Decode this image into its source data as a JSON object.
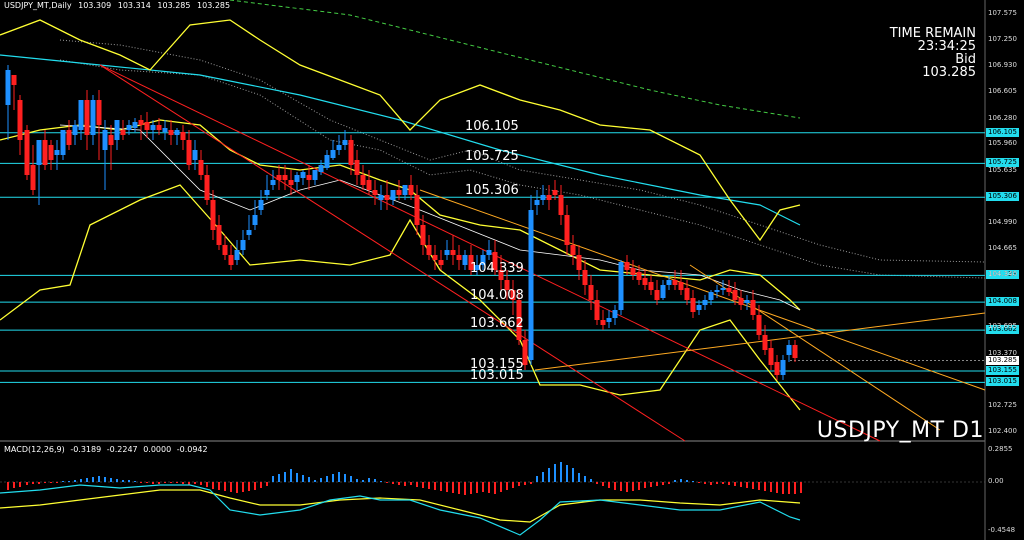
{
  "header": {
    "symbol": "USDJPY_MT,Daily",
    "open": "103.309",
    "high": "103.314",
    "low": "103.285",
    "close": "103.285"
  },
  "info": {
    "line1": "TIME REMAIN",
    "line2": "23:34:25",
    "line3": "Bid",
    "line4": "103.285"
  },
  "watermark": "USDJPY_MT D1",
  "levels": [
    {
      "label": "106.105",
      "value": 106.105
    },
    {
      "label": "105.725",
      "value": 105.725
    },
    {
      "label": "105.306",
      "value": 105.306
    },
    {
      "label": "104.339",
      "value": 104.339
    },
    {
      "label": "104.008",
      "value": 104.008
    },
    {
      "label": "103.662",
      "value": 103.662
    },
    {
      "label": "103.155",
      "value": 103.155
    },
    {
      "label": "103.015",
      "value": 103.015
    }
  ],
  "price_axis": [
    "107.575",
    "107.250",
    "106.930",
    "106.605",
    "106.280",
    "105.960",
    "105.635",
    "104.990",
    "104.665",
    "104.340",
    "103.695",
    "103.370",
    "102.725",
    "102.400"
  ],
  "current_price": "103.285",
  "macd": {
    "label": "MACD(12,26,9)",
    "v1": "-0.3189",
    "v2": "-0.2247",
    "v3": "0.0000",
    "v4": "-0.0942",
    "axis": [
      "0.2855",
      "0.00",
      "-0.4548"
    ]
  },
  "colors": {
    "up": "#1e90ff",
    "down": "#ff2020",
    "band": "#ffff33",
    "cyan": "#22ddee",
    "red_trend": "#ff2020",
    "orange": "#ffaa22"
  }
}
